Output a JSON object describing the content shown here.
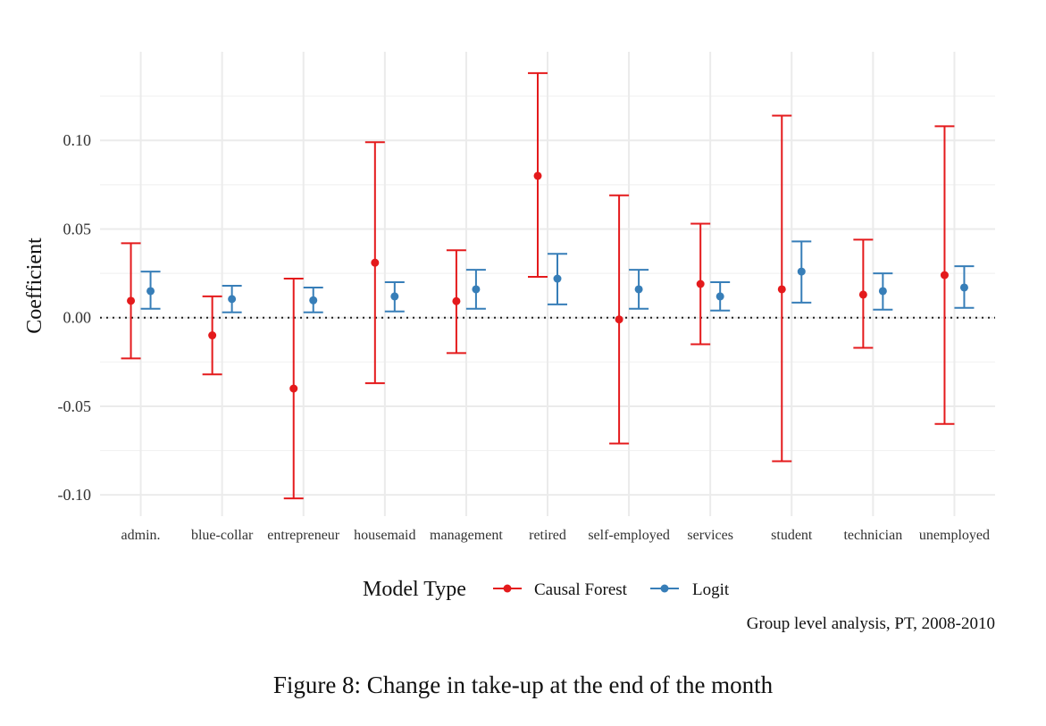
{
  "caption": "Figure 8: Change in take-up at the end of the month",
  "chart_data": {
    "type": "errorbar",
    "ylabel": "Coefficient",
    "xlabel": "",
    "ylim": [
      -0.112,
      0.15
    ],
    "yticks": [
      -0.1,
      -0.05,
      0.0,
      0.05,
      0.1
    ],
    "ytick_labels": [
      "-0.10",
      "-0.05",
      "0.00",
      "0.05",
      "0.10"
    ],
    "grid": true,
    "reference_line": 0.0,
    "categories": [
      "admin.",
      "blue-collar",
      "entrepreneur",
      "housemaid",
      "management",
      "retired",
      "self-employed",
      "services",
      "student",
      "technician",
      "unemployed"
    ],
    "legend": {
      "title": "Model Type",
      "position": "bottom"
    },
    "caption_note": "Group level analysis, PT, 2008-2010",
    "series": [
      {
        "name": "Causal Forest",
        "color": "#E41A1C",
        "estimate": [
          0.0095,
          -0.01,
          -0.04,
          0.031,
          0.0093,
          0.08,
          -0.001,
          0.019,
          0.016,
          0.013,
          0.024
        ],
        "lower": [
          -0.023,
          -0.032,
          -0.102,
          -0.037,
          -0.02,
          0.023,
          -0.071,
          -0.015,
          -0.081,
          -0.017,
          -0.06
        ],
        "upper": [
          0.042,
          0.012,
          0.022,
          0.099,
          0.038,
          0.138,
          0.069,
          0.053,
          0.114,
          0.044,
          0.108
        ]
      },
      {
        "name": "Logit",
        "color": "#377EB8",
        "estimate": [
          0.015,
          0.0105,
          0.0098,
          0.012,
          0.016,
          0.022,
          0.016,
          0.012,
          0.026,
          0.015,
          0.017
        ],
        "lower": [
          0.005,
          0.003,
          0.003,
          0.0035,
          0.005,
          0.0075,
          0.005,
          0.004,
          0.0085,
          0.0045,
          0.0055
        ],
        "upper": [
          0.026,
          0.018,
          0.017,
          0.02,
          0.027,
          0.036,
          0.027,
          0.02,
          0.043,
          0.025,
          0.029
        ]
      }
    ]
  }
}
